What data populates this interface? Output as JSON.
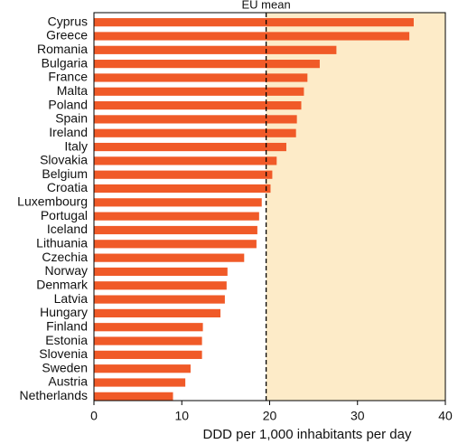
{
  "chart_data": {
    "type": "hbar",
    "xlabel": "DDD per 1,000 inhabitants per day",
    "categories": [
      "Cyprus",
      "Greece",
      "Romania",
      "Bulgaria",
      "France",
      "Malta",
      "Poland",
      "Spain",
      "Ireland",
      "Italy",
      "Slovakia",
      "Belgium",
      "Croatia",
      "Luxembourg",
      "Portugal",
      "Iceland",
      "Lithuania",
      "Czechia",
      "Norway",
      "Denmark",
      "Latvia",
      "Hungary",
      "Finland",
      "Estonia",
      "Slovenia",
      "Sweden",
      "Austria",
      "Netherlands"
    ],
    "values": [
      36.4,
      35.9,
      27.6,
      25.7,
      24.3,
      23.9,
      23.6,
      23.1,
      23.0,
      21.9,
      20.8,
      20.3,
      20.1,
      19.1,
      18.8,
      18.6,
      18.5,
      17.1,
      15.2,
      15.1,
      14.9,
      14.4,
      12.4,
      12.3,
      12.3,
      11.0,
      10.4,
      9.0
    ],
    "color": "#f05a28",
    "reference_line": {
      "label": "EU mean",
      "value": 19.6
    },
    "shade_color": "#fdebc8",
    "xlim": [
      0,
      40
    ],
    "xticks": [
      0,
      10,
      20,
      30,
      40
    ]
  }
}
